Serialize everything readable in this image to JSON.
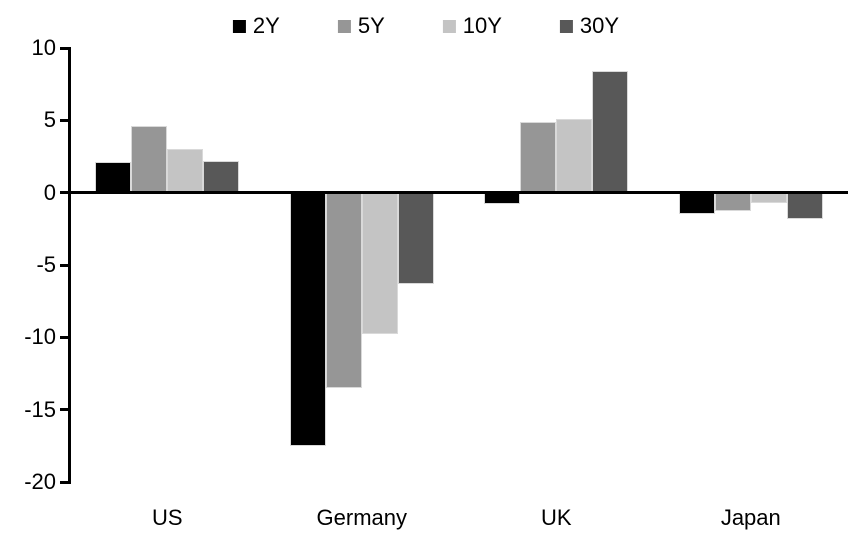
{
  "chart_data": {
    "type": "bar",
    "title": "",
    "xlabel": "",
    "ylabel": "",
    "categories": [
      "US",
      "Germany",
      "UK",
      "Japan"
    ],
    "series": [
      {
        "name": "2Y",
        "color": "#000000",
        "values": [
          2.1,
          -17.5,
          -0.8,
          -1.5
        ]
      },
      {
        "name": "5Y",
        "color": "#969696",
        "values": [
          4.6,
          -13.5,
          4.9,
          -1.3
        ]
      },
      {
        "name": "10Y",
        "color": "#c4c4c4",
        "values": [
          3.0,
          -9.8,
          5.1,
          -0.7
        ]
      },
      {
        "name": "30Y",
        "color": "#585858",
        "values": [
          2.2,
          -6.3,
          8.4,
          -1.8
        ]
      }
    ],
    "ylim": [
      -20,
      10
    ],
    "yticks": [
      10,
      5,
      0,
      -5,
      -10,
      -15,
      -20
    ],
    "ytick_labels": [
      "10",
      "5",
      "0",
      "-5",
      "-10",
      "-15",
      "-20"
    ],
    "grid": false,
    "legend_position": "top-center",
    "axis_color": "#000000",
    "bar_border_color": "#d9d9d9",
    "background_color": "#ffffff"
  }
}
